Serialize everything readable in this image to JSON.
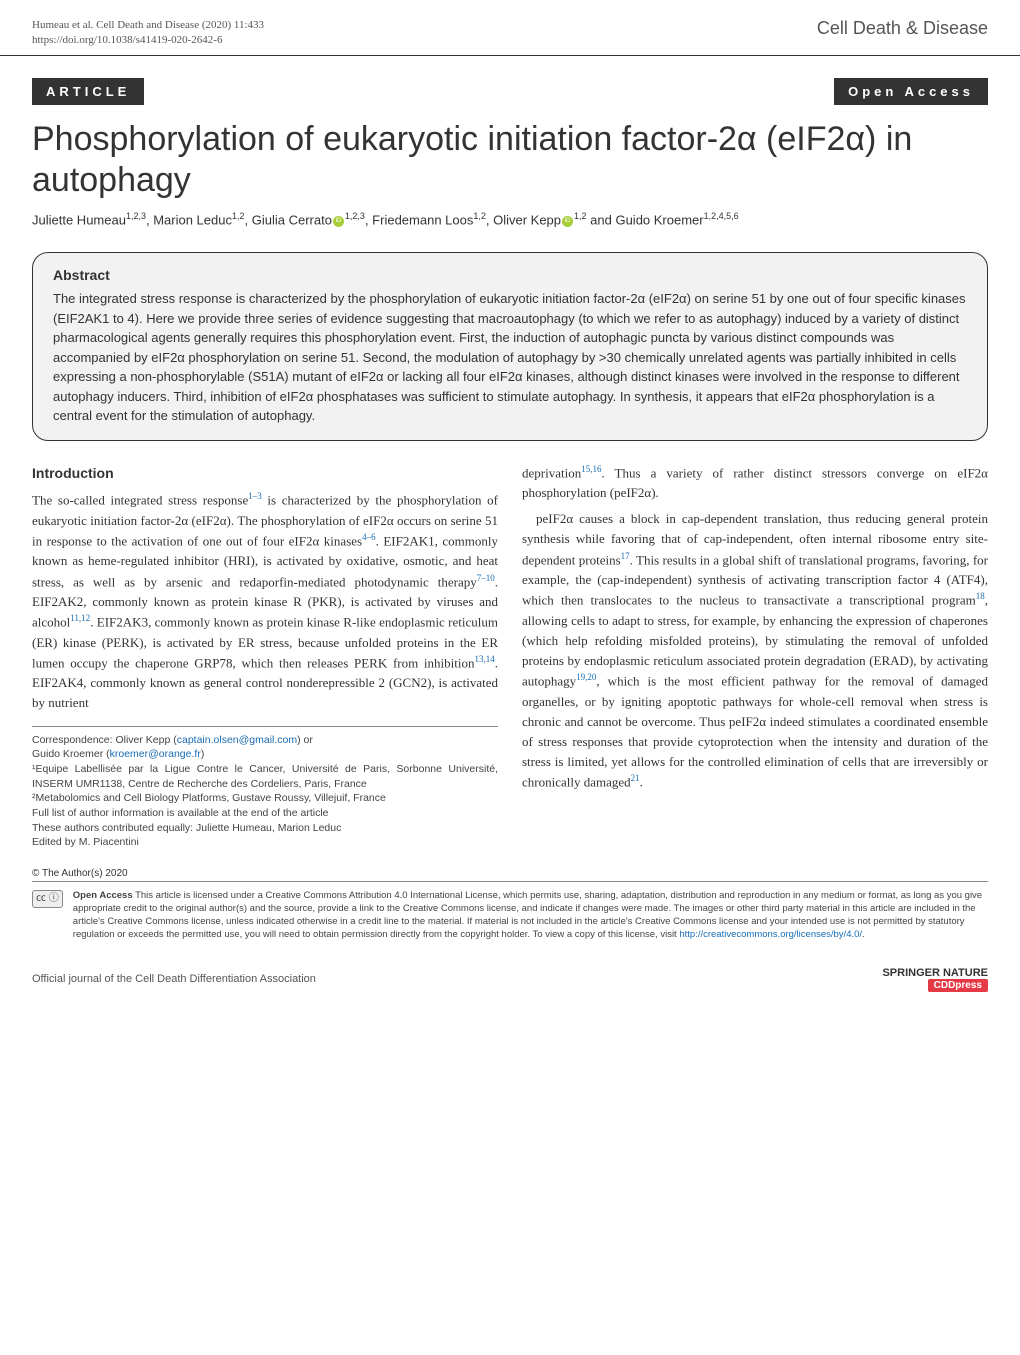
{
  "header": {
    "citation_line1": "Humeau et al. Cell Death and Disease        (2020) 11:433",
    "citation_line2": "https://doi.org/10.1038/s41419-020-2642-6",
    "journal": "Cell Death & Disease"
  },
  "article_bar": {
    "article_label": "ARTICLE",
    "open_access_label": "Open Access"
  },
  "title": "Phosphorylation of eukaryotic initiation factor-2α (eIF2α) in autophagy",
  "authors_html": "Juliette Humeau<sup>1,2,3</sup>, Marion Leduc<sup>1,2</sup>, Giulia Cerrato<span class='orcid'></span><sup>1,2,3</sup>, Friedemann Loos<sup>1,2</sup>, Oliver Kepp<span class='orcid'></span><sup>1,2</sup> and Guido Kroemer<sup>1,2,4,5,6</sup>",
  "abstract": {
    "heading": "Abstract",
    "text": "The integrated stress response is characterized by the phosphorylation of eukaryotic initiation factor-2α (eIF2α) on serine 51 by one out of four specific kinases (EIF2AK1 to 4). Here we provide three series of evidence suggesting that macroautophagy (to which we refer to as autophagy) induced by a variety of distinct pharmacological agents generally requires this phosphorylation event. First, the induction of autophagic puncta by various distinct compounds was accompanied by eIF2α phosphorylation on serine 51. Second, the modulation of autophagy by >30 chemically unrelated agents was partially inhibited in cells expressing a non-phosphorylable (S51A) mutant of eIF2α or lacking all four eIF2α kinases, although distinct kinases were involved in the response to different autophagy inducers. Third, inhibition of eIF2α phosphatases was sufficient to stimulate autophagy. In synthesis, it appears that eIF2α phosphorylation is a central event for the stimulation of autophagy."
  },
  "intro": {
    "heading": "Introduction",
    "para1": "The so-called integrated stress response<sup>1–3</sup> is characterized by the phosphorylation of eukaryotic initiation factor-2α (eIF2α). The phosphorylation of eIF2α occurs on serine 51 in response to the activation of one out of four eIF2α kinases<sup>4–6</sup>. EIF2AK1, commonly known as heme-regulated inhibitor (HRI), is activated by oxidative, osmotic, and heat stress, as well as by arsenic and redaporfin-mediated photodynamic therapy<sup>7–10</sup>. EIF2AK2, commonly known as protein kinase R (PKR), is activated by viruses and alcohol<sup>11,12</sup>. EIF2AK3, commonly known as protein kinase R-like endoplasmic reticulum (ER) kinase (PERK), is activated by ER stress, because unfolded proteins in the ER lumen occupy the chaperone GRP78, which then releases PERK from inhibition<sup>13,14</sup>. EIF2AK4, commonly known as general control nonderepressible 2 (GCN2), is activated by nutrient",
    "col2_para1": "deprivation<sup>15,16</sup>. Thus a variety of rather distinct stressors converge on eIF2α phosphorylation (peIF2α).",
    "col2_para2": "peIF2α causes a block in cap-dependent translation, thus reducing general protein synthesis while favoring that of cap-independent, often internal ribosome entry site-dependent proteins<sup>17</sup>. This results in a global shift of translational programs, favoring, for example, the (cap-independent) synthesis of activating transcription factor 4 (ATF4), which then translocates to the nucleus to transactivate a transcriptional program<sup>18</sup>, allowing cells to adapt to stress, for example, by enhancing the expression of chaperones (which help refolding misfolded proteins), by stimulating the removal of unfolded proteins by endoplasmic reticulum associated protein degradation (ERAD), by activating autophagy<sup>19,20</sup>, which is the most efficient pathway for the removal of damaged organelles, or by igniting apoptotic pathways for whole-cell removal when stress is chronic and cannot be overcome. Thus peIF2α indeed stimulates a coordinated ensemble of stress responses that provide cytoprotection when the intensity and duration of the stress is limited, yet allows for the controlled elimination of cells that are irreversibly or chronically damaged<sup>21</sup>."
  },
  "correspondence": {
    "line1": "Correspondence: Oliver Kepp (",
    "email1": "captain.olsen@gmail.com",
    "line1b": ") or",
    "line2": "Guido Kroemer (",
    "email2": "kroemer@orange.fr",
    "line2b": ")",
    "aff1": "¹Equipe Labellisée par la Ligue Contre le Cancer, Université de Paris, Sorbonne Université, INSERM UMR1138, Centre de Recherche des Cordeliers, Paris, France",
    "aff2": "²Metabolomics and Cell Biology Platforms, Gustave Roussy, Villejuif, France",
    "aff3": "Full list of author information is available at the end of the article",
    "aff4": "These authors contributed equally: Juliette Humeau, Marion Leduc",
    "aff5": "Edited by M. Piacentini"
  },
  "license": {
    "copyright": "© The Author(s) 2020",
    "cc_label": "㏄ ⓘ",
    "bold": "Open Access",
    "text": " This article is licensed under a Creative Commons Attribution 4.0 International License, which permits use, sharing, adaptation, distribution and reproduction in any medium or format, as long as you give appropriate credit to the original author(s) and the source, provide a link to the Creative Commons license, and indicate if changes were made. The images or other third party material in this article are included in the article's Creative Commons license, unless indicated otherwise in a credit line to the material. If material is not included in the article's Creative Commons license and your intended use is not permitted by statutory regulation or exceeds the permitted use, you will need to obtain permission directly from the copyright holder. To view a copy of this license, visit ",
    "link": "http://creativecommons.org/licenses/by/4.0/",
    "link_after": "."
  },
  "footer": {
    "left": "Official journal of the Cell Death Differentiation Association",
    "springer": "SPRINGER NATURE",
    "cdd": "CDDpress"
  }
}
